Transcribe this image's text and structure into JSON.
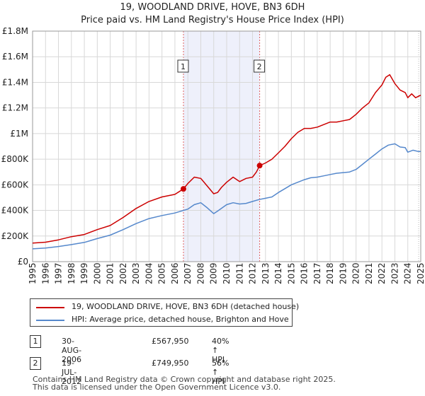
{
  "title_line1": "19, WOODLAND DRIVE, HOVE, BN3 6DH",
  "title_line2": "Price paid vs. HM Land Registry's House Price Index (HPI)",
  "legend": {
    "property_label": "19, WOODLAND DRIVE, HOVE, BN3 6DH (detached house)",
    "hpi_label": "HPI: Average price, detached house, Brighton and Hove"
  },
  "transactions": [
    {
      "num": "1",
      "date": "30-AUG-2006",
      "price": "£567,950",
      "hpi": "40% ↑ HPI"
    },
    {
      "num": "2",
      "date": "19-JUL-2012",
      "price": "£749,950",
      "hpi": "56% ↑ HPI"
    }
  ],
  "footer": {
    "line1": "Contains HM Land Registry data © Crown copyright and database right 2025.",
    "line2": "This data is licensed under the Open Government Licence v3.0."
  },
  "colors": {
    "property": "#cc0000",
    "hpi": "#5588cc",
    "sale_band": "#eef0fb",
    "vline": "#e06060"
  },
  "chart_data": {
    "type": "line",
    "xlim": [
      1995,
      2025
    ],
    "ylim": [
      0,
      1800000
    ],
    "x_ticks": [
      1995,
      1996,
      1997,
      1998,
      1999,
      2000,
      2001,
      2002,
      2003,
      2004,
      2005,
      2006,
      2007,
      2008,
      2009,
      2010,
      2011,
      2012,
      2013,
      2014,
      2015,
      2016,
      2017,
      2018,
      2019,
      2020,
      2021,
      2022,
      2023,
      2024,
      2025
    ],
    "x_tick_labels": [
      "1995",
      "1996",
      "1997",
      "1998",
      "1999",
      "2000",
      "2001",
      "2002",
      "2003",
      "2004",
      "2005",
      "2006",
      "2007",
      "2008",
      "2009",
      "2010",
      "2011",
      "2012",
      "2013",
      "2014",
      "2015",
      "2016",
      "2017",
      "2018",
      "2019",
      "2020",
      "2021",
      "2022",
      "2023",
      "2024",
      "2025"
    ],
    "y_ticks": [
      0,
      200000,
      400000,
      600000,
      800000,
      1000000,
      1200000,
      1400000,
      1600000,
      1800000
    ],
    "y_tick_labels": [
      "£0",
      "£200K",
      "£400K",
      "£600K",
      "£800K",
      "£1M",
      "£1.2M",
      "£1.4M",
      "£1.6M",
      "£1.8M"
    ],
    "sales": [
      {
        "label": "1",
        "x": 2006.66,
        "y": 567950
      },
      {
        "label": "2",
        "x": 2012.55,
        "y": 749950
      }
    ],
    "series": [
      {
        "name": "19, WOODLAND DRIVE, HOVE, BN3 6DH (detached house)",
        "x": [
          1995,
          1996,
          1997,
          1998,
          1999,
          2000,
          2001,
          2002,
          2003,
          2004,
          2005,
          2006,
          2006.66,
          2007,
          2007.5,
          2008,
          2008.5,
          2009,
          2009.3,
          2009.6,
          2010,
          2010.5,
          2011,
          2011.5,
          2012,
          2012.3,
          2012.55,
          2013,
          2013.5,
          2014,
          2014.5,
          2015,
          2015.5,
          2016,
          2016.5,
          2017,
          2017.5,
          2018,
          2018.5,
          2019,
          2019.5,
          2020,
          2020.5,
          2021,
          2021.5,
          2022,
          2022.3,
          2022.6,
          2023,
          2023.4,
          2023.8,
          2024,
          2024.3,
          2024.6,
          2025
        ],
        "y": [
          145000,
          152000,
          170000,
          195000,
          212000,
          250000,
          282000,
          345000,
          415000,
          470000,
          505000,
          525000,
          567950,
          610000,
          660000,
          650000,
          590000,
          530000,
          540000,
          580000,
          620000,
          660000,
          625000,
          650000,
          660000,
          700000,
          749950,
          770000,
          800000,
          850000,
          900000,
          960000,
          1010000,
          1040000,
          1040000,
          1050000,
          1070000,
          1090000,
          1090000,
          1100000,
          1110000,
          1150000,
          1200000,
          1240000,
          1320000,
          1380000,
          1440000,
          1460000,
          1390000,
          1340000,
          1320000,
          1280000,
          1310000,
          1280000,
          1300000
        ]
      },
      {
        "name": "HPI: Average price, detached house, Brighton and Hove",
        "x": [
          1995,
          1996,
          1997,
          1998,
          1999,
          2000,
          2001,
          2002,
          2003,
          2004,
          2005,
          2006,
          2007,
          2007.5,
          2008,
          2008.5,
          2009,
          2009.3,
          2010,
          2010.5,
          2011,
          2011.5,
          2012,
          2012.5,
          2013,
          2013.5,
          2014,
          2014.5,
          2015,
          2015.5,
          2016,
          2016.5,
          2017,
          2017.5,
          2018,
          2018.5,
          2019,
          2019.5,
          2020,
          2020.5,
          2021,
          2021.5,
          2022,
          2022.5,
          2023,
          2023.4,
          2023.8,
          2024,
          2024.4,
          2024.8,
          2025
        ],
        "y": [
          100000,
          106000,
          118000,
          133000,
          150000,
          180000,
          207000,
          250000,
          297000,
          336000,
          360000,
          380000,
          410000,
          445000,
          460000,
          420000,
          375000,
          395000,
          445000,
          460000,
          450000,
          455000,
          470000,
          485000,
          495000,
          505000,
          540000,
          570000,
          600000,
          620000,
          640000,
          655000,
          660000,
          670000,
          680000,
          690000,
          695000,
          700000,
          720000,
          760000,
          800000,
          840000,
          880000,
          910000,
          920000,
          895000,
          890000,
          855000,
          870000,
          860000,
          860000
        ]
      }
    ]
  }
}
